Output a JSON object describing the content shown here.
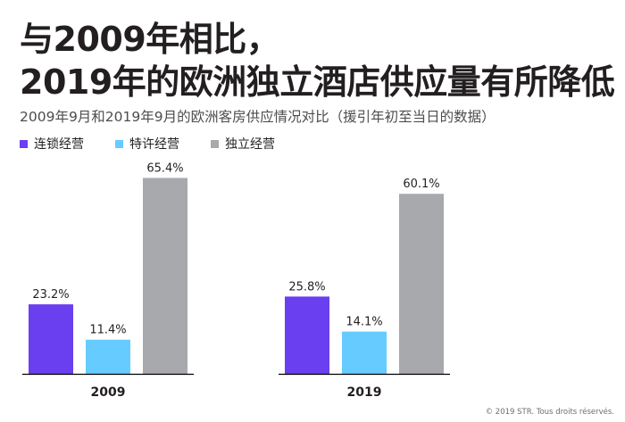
{
  "title": {
    "line1": "与2009年相比，",
    "line2": "2019年的欧洲独立酒店供应量有所降低"
  },
  "subtitle": "2009年9月和2019年9月的欧洲客房供应情况对比（援引年初至当日的数据）",
  "colors": {
    "chain": "#6a3ff0",
    "franchise": "#66ccff",
    "independent": "#a7a9ac",
    "baseline": "#000000",
    "text": "#231f20"
  },
  "copyright": "© 2019 STR. Tous droits réservés.",
  "chart_data": {
    "type": "bar",
    "title": "2009年9月和2019年9月的欧洲客房供应情况对比（援引年初至当日的数据）",
    "categories": [
      "2009",
      "2019"
    ],
    "series": [
      {
        "name": "连锁经营",
        "values": [
          23.2,
          25.8
        ],
        "labels": [
          "23.2%",
          "25.8%"
        ],
        "color": "#6a3ff0"
      },
      {
        "name": "特许经营",
        "values": [
          11.4,
          14.1
        ],
        "labels": [
          "11.4%",
          "14.1%"
        ],
        "color": "#66ccff"
      },
      {
        "name": "独立经营",
        "values": [
          65.4,
          60.1
        ],
        "labels": [
          "65.4%",
          "60.1%"
        ],
        "color": "#a7a9ac"
      }
    ],
    "ylim": [
      0,
      70
    ],
    "unit": "%",
    "grid": false,
    "legend": "top-left",
    "xlabel": "",
    "ylabel": ""
  }
}
